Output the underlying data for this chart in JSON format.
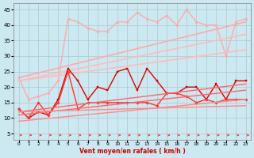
{
  "xlabel": "Vent moyen/en rafales ( km/h )",
  "background_color": "#cce8f0",
  "grid_color": "#b0c8d0",
  "xlim": [
    -0.5,
    23.5
  ],
  "ylim": [
    3,
    47
  ],
  "yticks": [
    5,
    10,
    15,
    20,
    25,
    30,
    35,
    40,
    45
  ],
  "xticks": [
    0,
    1,
    2,
    3,
    4,
    5,
    6,
    7,
    8,
    9,
    10,
    11,
    12,
    13,
    14,
    15,
    16,
    17,
    18,
    19,
    20,
    21,
    22,
    23
  ],
  "series": [
    {
      "x": [
        0,
        1,
        2,
        3,
        4,
        5,
        6,
        7,
        8,
        9,
        10,
        11,
        12,
        13,
        14,
        15,
        16,
        17,
        18,
        19,
        20,
        21,
        22,
        23
      ],
      "y": [
        23,
        16,
        17,
        18,
        22,
        42,
        41,
        39,
        38,
        38,
        41,
        41,
        44,
        42,
        41,
        43,
        40,
        45,
        41,
        40,
        40,
        30,
        41,
        42
      ],
      "color": "#ffaaaa",
      "lw": 1.0,
      "marker": "o",
      "ms": 2.0,
      "ls": "-"
    },
    {
      "x": [
        0,
        23
      ],
      "y": [
        23,
        41
      ],
      "color": "#ffaaaa",
      "lw": 1.2,
      "marker": null,
      "ms": 0,
      "ls": "-"
    },
    {
      "x": [
        0,
        23
      ],
      "y": [
        22,
        37
      ],
      "color": "#ffbbbb",
      "lw": 1.2,
      "marker": null,
      "ms": 0,
      "ls": "-"
    },
    {
      "x": [
        0,
        23
      ],
      "y": [
        22,
        32
      ],
      "color": "#ffbbbb",
      "lw": 1.2,
      "marker": null,
      "ms": 0,
      "ls": "-"
    },
    {
      "x": [
        0,
        1,
        2,
        3,
        4,
        5,
        6,
        7,
        8,
        9,
        10,
        11,
        12,
        13,
        14,
        15,
        16,
        17,
        18,
        19,
        20,
        21,
        22,
        23
      ],
      "y": [
        13,
        10,
        12,
        11,
        16,
        26,
        22,
        16,
        20,
        19,
        25,
        26,
        19,
        26,
        22,
        18,
        18,
        20,
        20,
        16,
        21,
        16,
        22,
        22
      ],
      "color": "#dd0000",
      "lw": 1.0,
      "marker": "s",
      "ms": 2.0,
      "ls": "-"
    },
    {
      "x": [
        0,
        1,
        2,
        3,
        4,
        5,
        6,
        7,
        8,
        9,
        10,
        11,
        12,
        13,
        14,
        15,
        16,
        17,
        18,
        19,
        20,
        21,
        22,
        23
      ],
      "y": [
        13,
        10,
        15,
        11,
        15,
        25,
        13,
        15,
        15,
        15,
        15,
        15,
        15,
        15,
        14,
        18,
        18,
        17,
        15,
        16,
        15,
        16,
        16,
        16
      ],
      "color": "#ff3333",
      "lw": 1.0,
      "marker": "D",
      "ms": 1.8,
      "ls": "-"
    },
    {
      "x": [
        0,
        23
      ],
      "y": [
        12,
        21
      ],
      "color": "#ff6666",
      "lw": 1.0,
      "marker": null,
      "ms": 0,
      "ls": "-"
    },
    {
      "x": [
        0,
        23
      ],
      "y": [
        11,
        19
      ],
      "color": "#ff6666",
      "lw": 1.0,
      "marker": null,
      "ms": 0,
      "ls": "-"
    },
    {
      "x": [
        0,
        23
      ],
      "y": [
        9,
        16
      ],
      "color": "#ff8888",
      "lw": 1.0,
      "marker": null,
      "ms": 0,
      "ls": "-"
    },
    {
      "x": [
        0,
        23
      ],
      "y": [
        12,
        14
      ],
      "color": "#ff8888",
      "lw": 1.0,
      "marker": null,
      "ms": 0,
      "ls": "-"
    }
  ],
  "arrows": {
    "x": [
      0,
      1,
      2,
      3,
      4,
      5,
      6,
      7,
      8,
      9,
      10,
      11,
      12,
      13,
      14,
      15,
      16,
      17,
      18,
      19,
      20,
      21,
      22,
      23
    ],
    "y": 4.5,
    "color": "#ff4444",
    "size": 3.5
  }
}
